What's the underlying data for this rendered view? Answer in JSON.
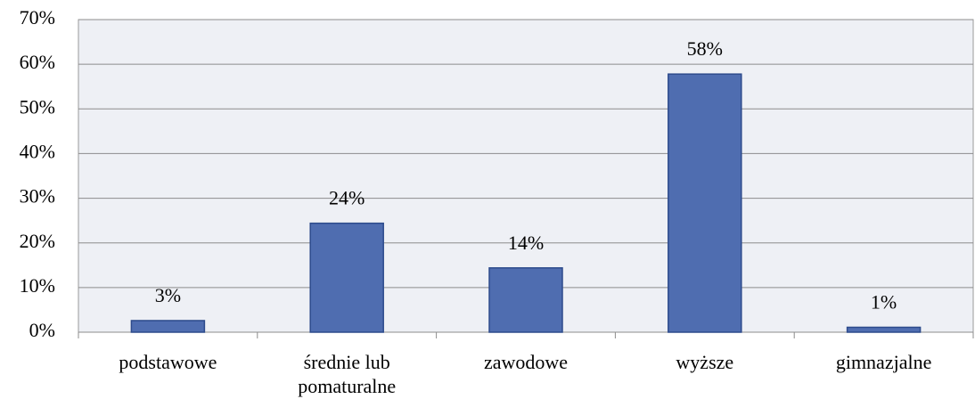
{
  "chart_data": {
    "type": "bar",
    "categories": [
      "podstawowe",
      "średnie lub pomaturalne",
      "zawodowe",
      "wyższe",
      "gimnazjalne"
    ],
    "values": [
      2.6,
      24.4,
      14.4,
      57.8,
      1.1
    ],
    "value_labels": [
      "3%",
      "24%",
      "14%",
      "58%",
      "1%"
    ],
    "color": "#4f6db0",
    "ylim": [
      0,
      70
    ],
    "yticks": [
      {
        "value": 0,
        "label": "0%"
      },
      {
        "value": 10,
        "label": "10%"
      },
      {
        "value": 20,
        "label": "20%"
      },
      {
        "value": 30,
        "label": "30%"
      },
      {
        "value": 40,
        "label": "40%"
      },
      {
        "value": 50,
        "label": "50%"
      },
      {
        "value": 60,
        "label": "60%"
      },
      {
        "value": 70,
        "label": "70%"
      }
    ],
    "grid": true
  }
}
